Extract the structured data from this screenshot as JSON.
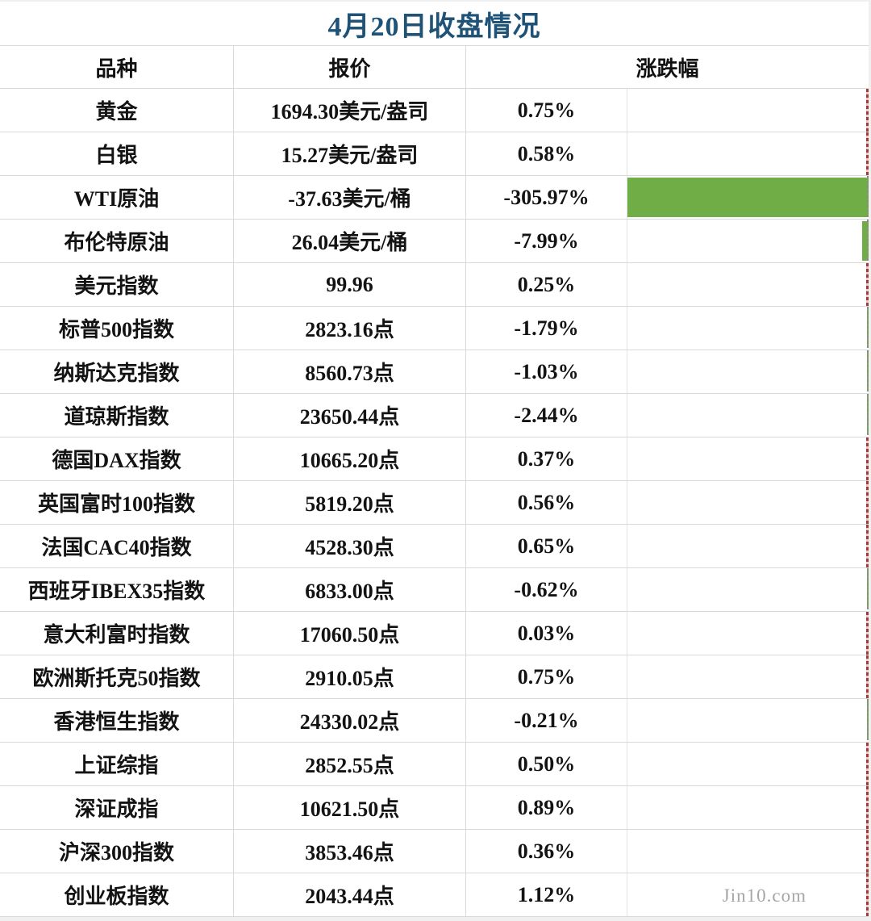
{
  "title": "4月20日收盘情况",
  "watermark": "Jin10.com",
  "colors": {
    "title_text": "#1e5276",
    "negative_bar": "#70ad47",
    "positive_bar": "#a33b3b",
    "gridline": "#d9d9d9",
    "axis_dash": "#8a8a8a",
    "watermark_text": "#a6a6a6"
  },
  "table": {
    "headers": [
      "品种",
      "报价",
      "涨跌幅"
    ],
    "rows": [
      {
        "name": "黄金",
        "quote": "1694.30美元/盎司",
        "change": "0.75%",
        "change_value": 0.75
      },
      {
        "name": "白银",
        "quote": "15.27美元/盎司",
        "change": "0.58%",
        "change_value": 0.58
      },
      {
        "name": "WTI原油",
        "quote": "-37.63美元/桶",
        "change": "-305.97%",
        "change_value": -305.97
      },
      {
        "name": "布伦特原油",
        "quote": "26.04美元/桶",
        "change": "-7.99%",
        "change_value": -7.99
      },
      {
        "name": "美元指数",
        "quote": "99.96",
        "change": "0.25%",
        "change_value": 0.25
      },
      {
        "name": "标普500指数",
        "quote": "2823.16点",
        "change": "-1.79%",
        "change_value": -1.79
      },
      {
        "name": "纳斯达克指数",
        "quote": "8560.73点",
        "change": "-1.03%",
        "change_value": -1.03
      },
      {
        "name": "道琼斯指数",
        "quote": "23650.44点",
        "change": "-2.44%",
        "change_value": -2.44
      },
      {
        "name": "德国DAX指数",
        "quote": "10665.20点",
        "change": "0.37%",
        "change_value": 0.37
      },
      {
        "name": "英国富时100指数",
        "quote": "5819.20点",
        "change": "0.56%",
        "change_value": 0.56
      },
      {
        "name": "法国CAC40指数",
        "quote": "4528.30点",
        "change": "0.65%",
        "change_value": 0.65
      },
      {
        "name": "西班牙IBEX35指数",
        "quote": "6833.00点",
        "change": "-0.62%",
        "change_value": -0.62
      },
      {
        "name": "意大利富时指数",
        "quote": "17060.50点",
        "change": "0.03%",
        "change_value": 0.03
      },
      {
        "name": "欧洲斯托克50指数",
        "quote": "2910.05点",
        "change": "0.75%",
        "change_value": 0.75
      },
      {
        "name": "香港恒生指数",
        "quote": "24330.02点",
        "change": "-0.21%",
        "change_value": -0.21
      },
      {
        "name": "上证综指",
        "quote": "2852.55点",
        "change": "0.50%",
        "change_value": 0.5
      },
      {
        "name": "深证成指",
        "quote": "10621.50点",
        "change": "0.89%",
        "change_value": 0.89
      },
      {
        "name": "沪深300指数",
        "quote": "3853.46点",
        "change": "0.36%",
        "change_value": 0.36
      },
      {
        "name": "创业板指数",
        "quote": "2043.44点",
        "change": "1.12%",
        "change_value": 1.12
      }
    ]
  },
  "chart_data": {
    "type": "table",
    "title": "4月20日收盘情况",
    "columns": [
      "品种",
      "报价",
      "涨跌幅"
    ],
    "categories": [
      "黄金",
      "白银",
      "WTI原油",
      "布伦特原油",
      "美元指数",
      "标普500指数",
      "纳斯达克指数",
      "道琼斯指数",
      "德国DAX指数",
      "英国富时100指数",
      "法国CAC40指数",
      "西班牙IBEX35指数",
      "意大利富时指数",
      "欧洲斯托克50指数",
      "香港恒生指数",
      "上证综指",
      "深证成指",
      "沪深300指数",
      "创业板指数"
    ],
    "series": [
      {
        "name": "报价",
        "values": [
          "1694.30美元/盎司",
          "15.27美元/盎司",
          "-37.63美元/桶",
          "26.04美元/桶",
          "99.96",
          "2823.16点",
          "8560.73点",
          "23650.44点",
          "10665.20点",
          "5819.20点",
          "4528.30点",
          "6833.00点",
          "17060.50点",
          "2910.05点",
          "24330.02点",
          "2852.55点",
          "10621.50点",
          "3853.46点",
          "2043.44点"
        ]
      },
      {
        "name": "涨跌幅(%)",
        "values": [
          0.75,
          0.58,
          -305.97,
          -7.99,
          0.25,
          -1.79,
          -1.03,
          -2.44,
          0.37,
          0.56,
          0.65,
          -0.62,
          0.03,
          0.75,
          -0.21,
          0.5,
          0.89,
          0.36,
          1.12
        ]
      }
    ],
    "layout_hints": {
      "data_bars": "right-anchored in 涨跌幅 column, green = negative, red = positive, scaled to max |value| = 305.97, dashed gray axis at right edge"
    }
  }
}
